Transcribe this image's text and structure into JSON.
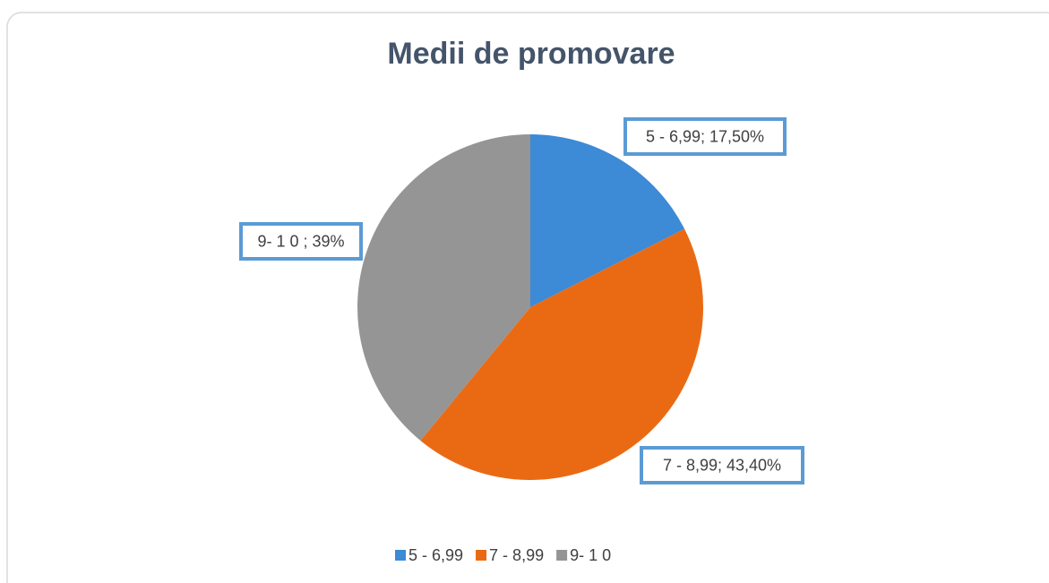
{
  "chart_data": {
    "type": "pie",
    "title": "Medii de promovare",
    "categories": [
      "5 - 6,99",
      "7 - 8,99",
      "9- 1 0"
    ],
    "values": [
      17.5,
      43.4,
      39
    ],
    "value_labels": [
      "5 - 6,99; 17,50%",
      "7 - 8,99; 43,40%",
      "9- 1 0 ; 39%"
    ],
    "colors": [
      "#3d8ad6",
      "#ea6a14",
      "#959595"
    ],
    "legend": "bottom"
  }
}
